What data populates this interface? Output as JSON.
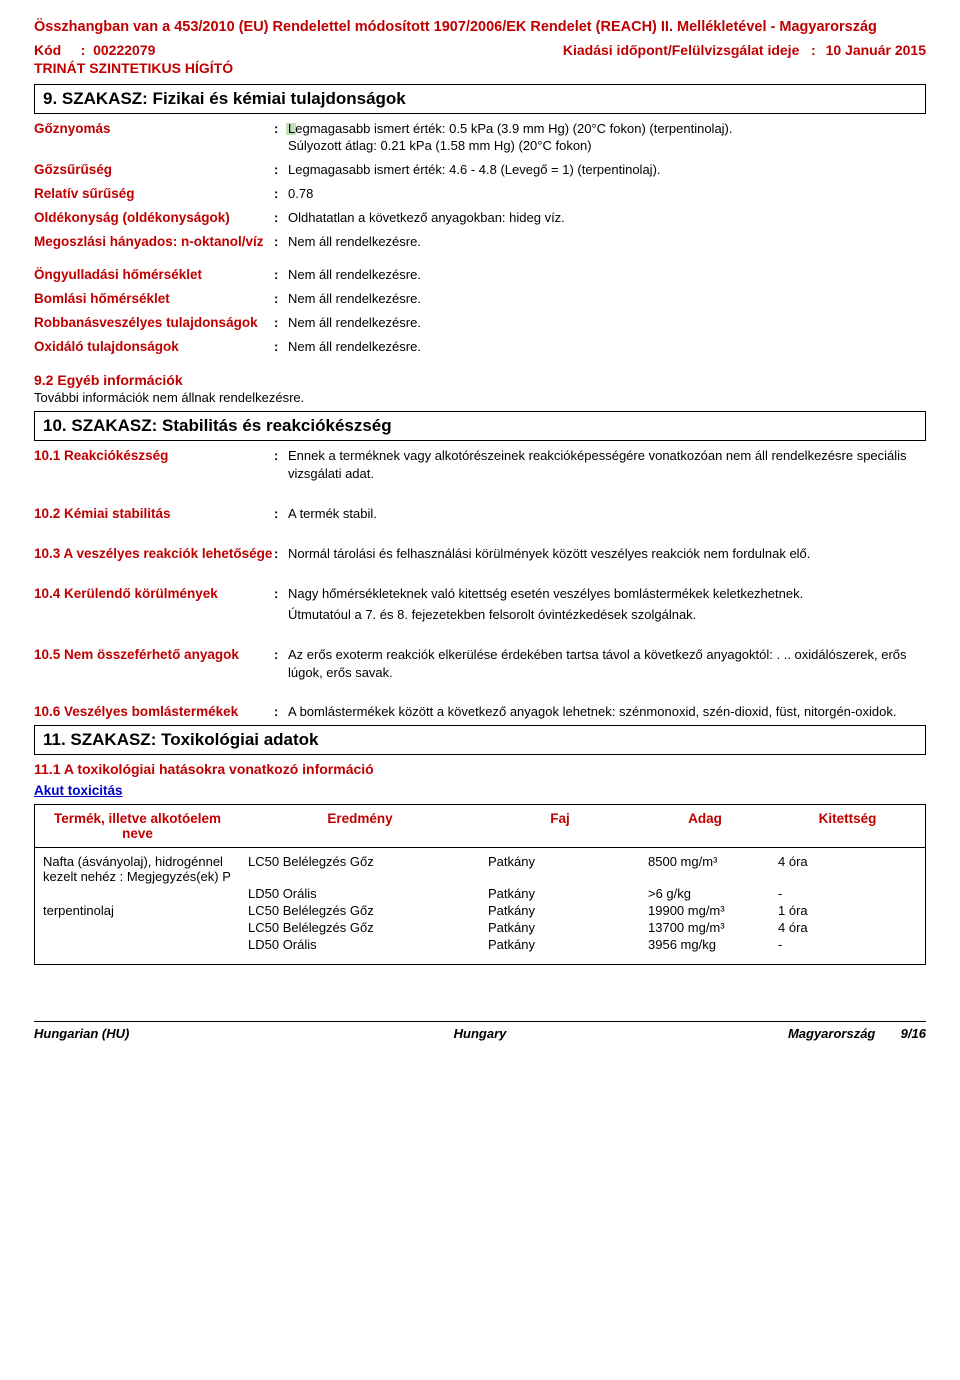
{
  "header": {
    "reach_line": "Összhangban van a 453/2010 (EU) Rendelettel módosított 1907/2006/EK Rendelet (REACH) II. Mellékletével - Magyarország",
    "kod_label": "Kód",
    "kod_value": "00222079",
    "date_label": "Kiadási időpont/Felülvizsgálat ideje",
    "date_value": "10 Január 2015",
    "product_name": "TRINÁT SZINTETIKUS HÍGÍTÓ"
  },
  "section9": {
    "title": "9. SZAKASZ: Fizikai és kémiai tulajdonságok",
    "rows": [
      {
        "label": "Gőznyomás",
        "value_line1": "Legmagasabb ismert érték: 0.5 kPa (3.9 mm Hg) (20°C fokon) (terpentinolaj).",
        "value_line2": "Súlyozott átlag: 0.21 kPa (1.58 mm Hg) (20°C fokon)",
        "marked": true
      },
      {
        "label": "Gőzsűrűség",
        "value_line1": "Legmagasabb ismert érték: 4.6 - 4.8  (Levegő = 1)  (terpentinolaj)."
      },
      {
        "label": "Relatív sűrűség",
        "value_line1": "0.78"
      },
      {
        "label": "Oldékonyság (oldékonyságok)",
        "value_line1": "Oldhatatlan a következő anyagokban: hideg víz."
      },
      {
        "label": "Megoszlási hányados: n-oktanol/víz",
        "value_line1": "Nem áll rendelkezésre."
      },
      {
        "label": "Öngyulladási hőmérséklet",
        "value_line1": "Nem áll rendelkezésre."
      },
      {
        "label": "Bomlási hőmérséklet",
        "value_line1": "Nem áll rendelkezésre."
      },
      {
        "label": "Robbanásveszélyes tulajdonságok",
        "value_line1": "Nem áll rendelkezésre."
      },
      {
        "label": "Oxidáló tulajdonságok",
        "value_line1": "Nem áll rendelkezésre."
      }
    ],
    "sub92": "9.2 Egyéb információk",
    "sub92_text": "További információk nem állnak rendelkezésre."
  },
  "section10": {
    "title": "10. SZAKASZ: Stabilitás és reakciókészség",
    "rows": [
      {
        "label": "10.1 Reakciókészség",
        "value": "Ennek a terméknek vagy alkotórészeinek reakcióképességére vonatkozóan nem áll rendelkezésre speciális vizsgálati adat."
      },
      {
        "label": "10.2 Kémiai stabilitás",
        "value": "A termék stabil."
      },
      {
        "label": "10.3 A veszélyes reakciók lehetősége",
        "value": "Normál tárolási és felhasználási körülmények között veszélyes reakciók nem fordulnak elő."
      },
      {
        "label": "10.4 Kerülendő körülmények",
        "value": "Nagy hőmérsékleteknek való kitettség esetén veszélyes bomlástermékek keletkezhetnek.",
        "value2": "Útmutatóul a 7. és 8. fejezetekben felsorolt óvintézkedések szolgálnak."
      },
      {
        "label": "10.5 Nem összeférhető anyagok",
        "value": "Az erős exoterm reakciók elkerülése érdekében tartsa távol a következő anyagoktól: . .. oxidálószerek, erős lúgok, erős savak."
      },
      {
        "label": "10.6 Veszélyes bomlástermékek",
        "value": "A bomlástermékek között a következő anyagok lehetnek: szénmonoxid, szén-dioxid, füst, nitorgén-oxidok."
      }
    ]
  },
  "section11": {
    "title": "11. SZAKASZ: Toxikológiai adatok",
    "sub111": "11.1 A toxikológiai hatásokra vonatkozó információ",
    "akut": "Akut toxicitás",
    "table_headers": {
      "c1": "Termék, illetve alkotóelem neve",
      "c2": "Eredmény",
      "c3": "Faj",
      "c4": "Adag",
      "c5": "Kitettség"
    },
    "rows": [
      {
        "c1": "Nafta (ásványolaj), hidrogénnel kezelt nehéz : Megjegyzés(ek) P",
        "c2": "LC50 Belélegzés Gőz",
        "c3": "Patkány",
        "c4": "8500 mg/m³",
        "c5": "4 óra"
      },
      {
        "c1": "",
        "c2": "LD50 Orális",
        "c3": "Patkány",
        "c4": ">6 g/kg",
        "c5": "-"
      },
      {
        "c1": "terpentinolaj",
        "c2": "LC50 Belélegzés Gőz",
        "c3": "Patkány",
        "c4": "19900 mg/m³",
        "c5": "1 óra"
      },
      {
        "c1": "",
        "c2": "LC50 Belélegzés Gőz",
        "c3": "Patkány",
        "c4": "13700 mg/m³",
        "c5": "4 óra"
      },
      {
        "c1": "",
        "c2": "LD50 Orális",
        "c3": "Patkány",
        "c4": "3956 mg/kg",
        "c5": "-"
      }
    ]
  },
  "footer": {
    "left": "Hungarian (HU)",
    "mid": "Hungary",
    "right_country": "Magyarország",
    "right_page": "9/16"
  }
}
